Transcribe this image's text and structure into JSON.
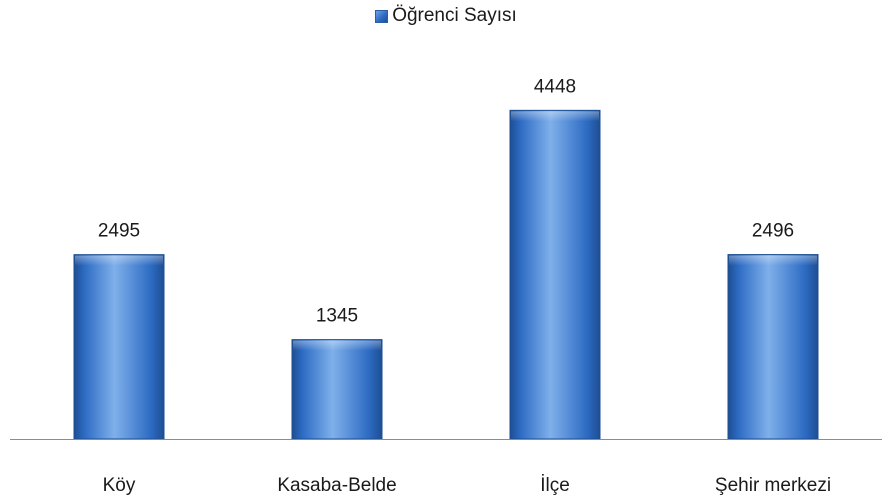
{
  "chart_data": {
    "type": "bar",
    "categories": [
      "Köy",
      "Kasaba-Belde",
      "İlçe",
      "Şehir merkezi"
    ],
    "series": [
      {
        "name": "Öğrenci Sayısı",
        "values": [
          2495,
          1345,
          4448,
          2496
        ]
      }
    ],
    "data_labels": [
      "2495",
      "1345",
      "4448",
      "2496"
    ],
    "legend_position": "top",
    "grid": false,
    "ylim": [
      0,
      5400
    ],
    "colors": {
      "bar": "#2e6cc4",
      "bar_light": "#7fb0ea",
      "bar_dark": "#1d4e93",
      "axis": "#8c8c8c"
    }
  }
}
